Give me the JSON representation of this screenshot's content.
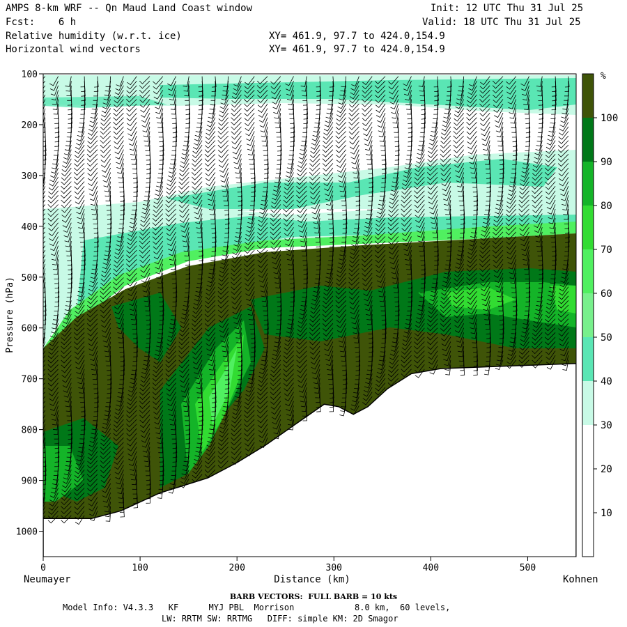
{
  "header": {
    "title": "AMPS 8-km WRF -- Qn Maud Land Coast window",
    "init": "Init: 12 UTC Thu 31 Jul 25",
    "fcst": "Fcst:    6 h",
    "valid": "Valid: 18 UTC Thu 31 Jul 25",
    "field1": "Relative humidity (w.r.t. ice)",
    "field2": "Horizontal wind vectors",
    "xy1": "XY= 461.9, 97.7 to 424.0,154.9",
    "xy2": "XY= 461.9, 97.7 to 424.0,154.9"
  },
  "chart_data": {
    "type": "heatmap",
    "xlabel": "Distance (km)",
    "ylabel": "Pressure (hPa)",
    "xlim": [
      0,
      550
    ],
    "ylim": [
      1050,
      100
    ],
    "x_ticks": [
      0,
      100,
      200,
      300,
      400,
      500
    ],
    "y_ticks": [
      100,
      200,
      300,
      400,
      500,
      600,
      700,
      800,
      900,
      1000
    ],
    "left_endpoint": "Neumayer",
    "right_endpoint": "Kohnen",
    "colorbar": {
      "unit": "%",
      "ticks": [
        10,
        20,
        30,
        40,
        50,
        60,
        70,
        80,
        90,
        100
      ],
      "levels": [
        {
          "from": 0,
          "to": 30,
          "color": "#ffffff"
        },
        {
          "from": 30,
          "to": 40,
          "color": "#c8fae6"
        },
        {
          "from": 40,
          "to": 50,
          "color": "#5ae6b4"
        },
        {
          "from": 50,
          "to": 60,
          "color": "#78f08c"
        },
        {
          "from": 60,
          "to": 70,
          "color": "#50f060"
        },
        {
          "from": 70,
          "to": 80,
          "color": "#32dc32"
        },
        {
          "from": 80,
          "to": 90,
          "color": "#14b428"
        },
        {
          "from": 90,
          "to": 100,
          "color": "#007818"
        },
        {
          "from": 100,
          "to": 110,
          "color": "#3f5408"
        }
      ]
    },
    "terrain_surface_hPa": [
      {
        "x": 0,
        "p": 975
      },
      {
        "x": 50,
        "p": 975
      },
      {
        "x": 80,
        "p": 960
      },
      {
        "x": 120,
        "p": 925
      },
      {
        "x": 170,
        "p": 895
      },
      {
        "x": 200,
        "p": 865
      },
      {
        "x": 230,
        "p": 830
      },
      {
        "x": 260,
        "p": 790
      },
      {
        "x": 290,
        "p": 750
      },
      {
        "x": 305,
        "p": 755
      },
      {
        "x": 320,
        "p": 770
      },
      {
        "x": 335,
        "p": 755
      },
      {
        "x": 355,
        "p": 720
      },
      {
        "x": 380,
        "p": 690
      },
      {
        "x": 410,
        "p": 680
      },
      {
        "x": 480,
        "p": 675
      },
      {
        "x": 550,
        "p": 670
      }
    ],
    "barb_note": "BARB VECTORS:  FULL BARB = 10 kts"
  },
  "footer": {
    "model_info": "Model Info: V4.3.3   KF      MYJ PBL  Morrison            8.0 km,  60 levels,",
    "physics": "LW: RRTM SW: RRTMG   DIFF: simple KM: 2D Smagor"
  },
  "colors": {
    "saturated": "#3f5408",
    "dark_green": "#007818",
    "mid_green": "#14b428",
    "bright_green": "#32dc32",
    "light_green": "#50f060",
    "pale_green": "#78f08c",
    "cyan": "#5ae6b4",
    "pale_cyan": "#c8fae6"
  }
}
